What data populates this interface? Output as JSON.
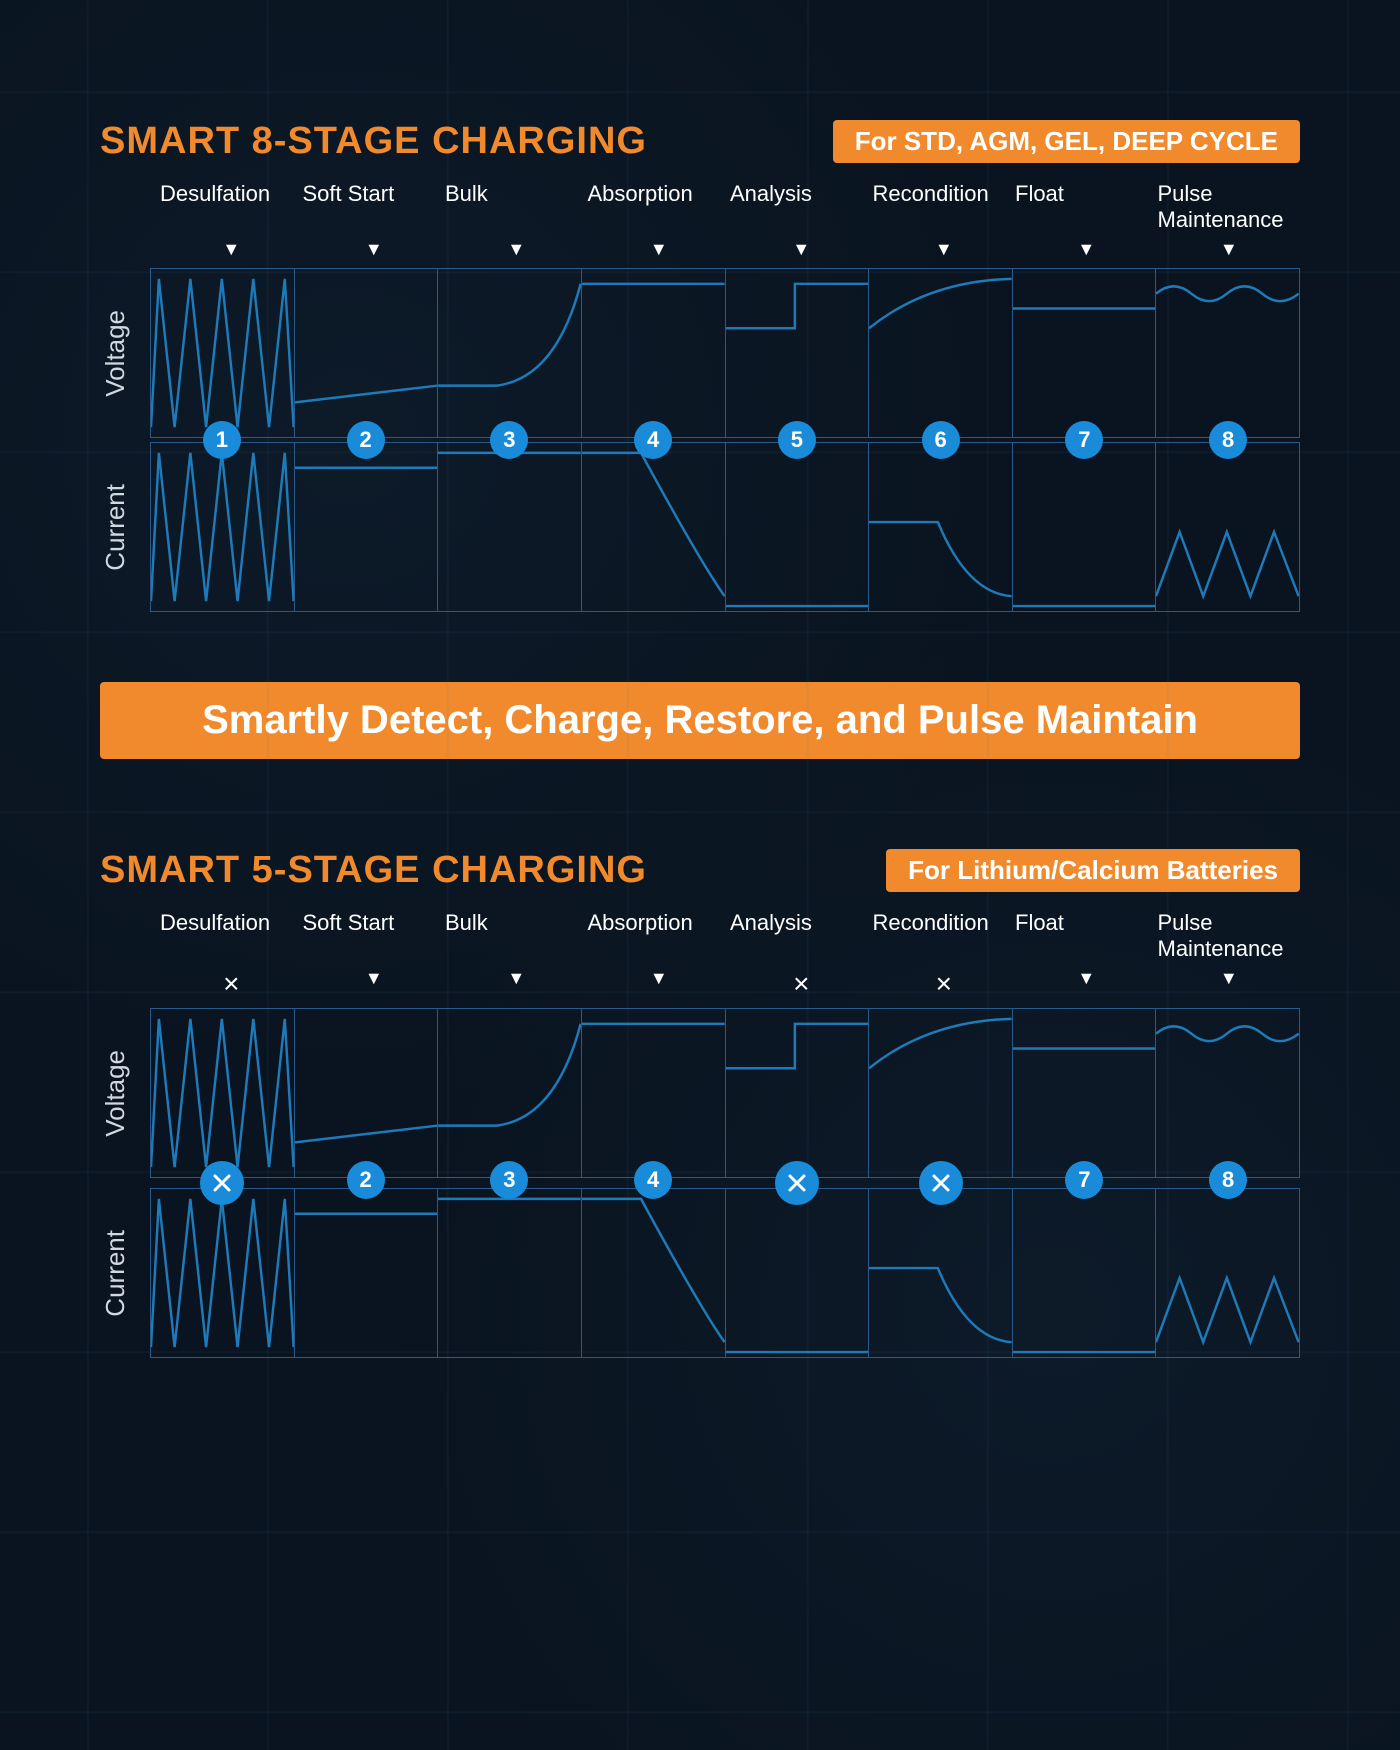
{
  "colors": {
    "background": "#0a1420",
    "accent_orange": "#f08a2c",
    "badge_text": "#ffffff",
    "grid_line": "#2a5a8a",
    "wave_blue": "#1e7ab8",
    "circle_blue": "#1a8bd8",
    "text_white": "#ffffff",
    "axis_label": "#d0d8e0"
  },
  "chart8": {
    "title": "SMART 8-STAGE CHARGING",
    "badge": "For STD, AGM, GEL, DEEP CYCLE",
    "axis_voltage": "Voltage",
    "axis_current": "Current",
    "stages": [
      {
        "label": "Desulfation",
        "marker": "▼",
        "circle_type": "num",
        "value": "1"
      },
      {
        "label": "Soft Start",
        "marker": "▼",
        "circle_type": "num",
        "value": "2"
      },
      {
        "label": "Bulk",
        "marker": "▼",
        "circle_type": "num",
        "value": "3"
      },
      {
        "label": "Absorption",
        "marker": "▼",
        "circle_type": "num",
        "value": "4"
      },
      {
        "label": "Analysis",
        "marker": "▼",
        "circle_type": "num",
        "value": "5"
      },
      {
        "label": "Recondition",
        "marker": "▼",
        "circle_type": "num",
        "value": "6"
      },
      {
        "label": "Float",
        "marker": "▼",
        "circle_type": "num",
        "value": "7"
      },
      {
        "label": "Pulse Maintenance",
        "marker": "▼",
        "circle_type": "num",
        "value": "8"
      }
    ],
    "voltage_paths": [
      "M0,160 L8,10 L24,160 L40,10 L56,160 L72,10 L88,160 L104,10 L120,160 L136,10 L145,160",
      "M0,135 Q40,130 145,118",
      "M0,118 L60,118 Q120,110 145,15",
      "M0,15 L145,15",
      "M0,60 L70,60 L70,15 L145,15",
      "M0,60 Q60,12 145,10",
      "M0,40 L145,40",
      "M0,25 Q18,10 36,25 Q54,40 72,25 Q90,10 108,25 Q126,40 145,25"
    ],
    "current_paths": [
      "M0,160 L8,10 L24,160 L40,10 L56,160 L72,10 L88,160 L104,10 L120,160 L136,10 L145,160",
      "M0,25 L145,25",
      "M0,10 L145,10",
      "M0,10 L60,10 Q120,120 145,155",
      "M0,165 L145,165",
      "M0,80 L70,80 Q100,152 145,155",
      "M0,165 L145,165",
      "M0,155 L24,90 L48,155 L72,90 L96,155 L120,90 L145,155"
    ]
  },
  "banner": {
    "text": "Smartly Detect, Charge, Restore, and Pulse Maintain"
  },
  "chart5": {
    "title": "SMART 5-STAGE CHARGING",
    "badge": "For Lithium/Calcium Batteries",
    "axis_voltage": "Voltage",
    "axis_current": "Current",
    "stages": [
      {
        "label": "Desulfation",
        "marker": "×",
        "circle_type": "x",
        "value": ""
      },
      {
        "label": "Soft Start",
        "marker": "▼",
        "circle_type": "num",
        "value": "2"
      },
      {
        "label": "Bulk",
        "marker": "▼",
        "circle_type": "num",
        "value": "3"
      },
      {
        "label": "Absorption",
        "marker": "▼",
        "circle_type": "num",
        "value": "4"
      },
      {
        "label": "Analysis",
        "marker": "×",
        "circle_type": "x",
        "value": ""
      },
      {
        "label": "Recondition",
        "marker": "×",
        "circle_type": "x",
        "value": ""
      },
      {
        "label": "Float",
        "marker": "▼",
        "circle_type": "num",
        "value": "7"
      },
      {
        "label": "Pulse Maintenance",
        "marker": "▼",
        "circle_type": "num",
        "value": "8"
      }
    ],
    "voltage_paths": [
      "M0,160 L8,10 L24,160 L40,10 L56,160 L72,10 L88,160 L104,10 L120,160 L136,10 L145,160",
      "M0,135 Q40,130 145,118",
      "M0,118 L60,118 Q120,110 145,15",
      "M0,15 L145,15",
      "M0,60 L70,60 L70,15 L145,15",
      "M0,60 Q60,12 145,10",
      "M0,40 L145,40",
      "M0,25 Q18,10 36,25 Q54,40 72,25 Q90,10 108,25 Q126,40 145,25"
    ],
    "current_paths": [
      "M0,160 L8,10 L24,160 L40,10 L56,160 L72,10 L88,160 L104,10 L120,160 L136,10 L145,160",
      "M0,25 L145,25",
      "M0,10 L145,10",
      "M0,10 L60,10 Q120,120 145,155",
      "M0,165 L145,165",
      "M0,80 L70,80 Q100,152 145,155",
      "M0,165 L145,165",
      "M0,155 L24,90 L48,155 L72,90 L96,155 L120,90 L145,155"
    ]
  },
  "style": {
    "title_fontsize": 38,
    "badge_fontsize": 26,
    "stage_label_fontsize": 22,
    "axis_label_fontsize": 26,
    "circle_diameter": 38,
    "banner_fontsize": 40,
    "wave_stroke_width": 2.5,
    "chart_cell_height": 170
  }
}
